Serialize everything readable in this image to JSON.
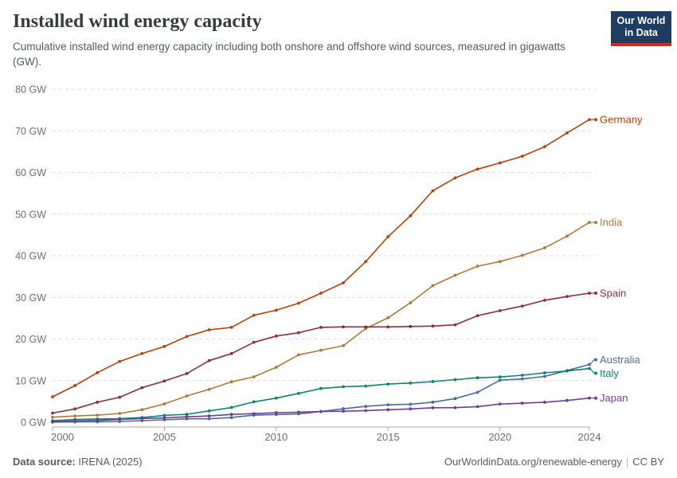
{
  "header": {
    "title": "Installed wind energy capacity",
    "subtitle": "Cumulative installed wind energy capacity including both onshore and offshore wind sources, measured in gigawatts (GW)."
  },
  "logo": {
    "line1": "Our World",
    "line2": "in Data",
    "bg_color": "#1d3d63",
    "accent_color": "#cc2a22"
  },
  "chart_data": {
    "type": "line",
    "title": "Installed wind energy capacity",
    "xlabel": "",
    "ylabel": "",
    "unit_suffix": " GW",
    "x": [
      2000,
      2001,
      2002,
      2003,
      2004,
      2005,
      2006,
      2007,
      2008,
      2009,
      2010,
      2011,
      2012,
      2013,
      2014,
      2015,
      2016,
      2017,
      2018,
      2019,
      2020,
      2021,
      2022,
      2023,
      2024
    ],
    "xticks": [
      2000,
      2005,
      2010,
      2015,
      2020,
      2024
    ],
    "yticks": [
      0,
      10,
      20,
      30,
      40,
      50,
      60,
      70,
      80
    ],
    "ylim": [
      0,
      80
    ],
    "grid": "horizontal-dashed",
    "legend_position": "line-end-labels-right",
    "series": [
      {
        "name": "Germany",
        "color": "#b6400f",
        "values": [
          6.1,
          8.8,
          11.9,
          14.6,
          16.5,
          18.2,
          20.6,
          22.2,
          22.8,
          25.7,
          26.9,
          28.6,
          31.0,
          33.5,
          38.6,
          44.6,
          49.6,
          55.6,
          58.7,
          60.8,
          62.3,
          63.9,
          66.2,
          69.5,
          72.7
        ]
      },
      {
        "name": "India",
        "color": "#a87b3c",
        "values": [
          1.2,
          1.5,
          1.7,
          2.1,
          3.0,
          4.4,
          6.3,
          7.9,
          9.7,
          10.9,
          13.2,
          16.2,
          17.3,
          18.4,
          22.5,
          25.1,
          28.7,
          32.8,
          35.3,
          37.5,
          38.6,
          40.1,
          41.9,
          44.7,
          48.0
        ]
      },
      {
        "name": "Spain",
        "color": "#883039",
        "values": [
          2.2,
          3.2,
          4.8,
          6.0,
          8.3,
          9.9,
          11.7,
          14.8,
          16.5,
          19.2,
          20.7,
          21.5,
          22.8,
          22.9,
          22.9,
          22.9,
          23.0,
          23.1,
          23.4,
          25.6,
          26.8,
          27.9,
          29.3,
          30.2,
          31.0
        ]
      },
      {
        "name": "Australia",
        "color": "#4c6a9c",
        "values": [
          0.03,
          0.07,
          0.1,
          0.2,
          0.38,
          0.58,
          0.82,
          0.82,
          1.13,
          1.7,
          1.86,
          2.0,
          2.58,
          3.24,
          3.81,
          4.19,
          4.33,
          4.82,
          5.68,
          7.2,
          10.1,
          10.4,
          11.0,
          12.4,
          13.9
        ]
      },
      {
        "name": "Italy",
        "color": "#0d846b",
        "values": [
          0.36,
          0.66,
          0.78,
          0.87,
          1.13,
          1.64,
          1.91,
          2.71,
          3.54,
          4.9,
          5.79,
          6.92,
          8.1,
          8.54,
          8.68,
          9.16,
          9.41,
          9.77,
          10.23,
          10.68,
          10.87,
          11.29,
          11.87,
          12.31,
          12.9
        ]
      },
      {
        "name": "Japan",
        "color": "#6d3e91",
        "values": [
          0.14,
          0.31,
          0.42,
          0.68,
          0.9,
          1.04,
          1.31,
          1.52,
          1.88,
          2.06,
          2.29,
          2.42,
          2.56,
          2.65,
          2.79,
          3.0,
          3.2,
          3.48,
          3.5,
          3.76,
          4.37,
          4.58,
          4.8,
          5.23,
          5.8
        ]
      }
    ]
  },
  "footer": {
    "datasource_label": "Data source:",
    "datasource_value": "IRENA (2025)",
    "link": "OurWorldinData.org/renewable-energy",
    "separator": "|",
    "license": "CC BY"
  }
}
